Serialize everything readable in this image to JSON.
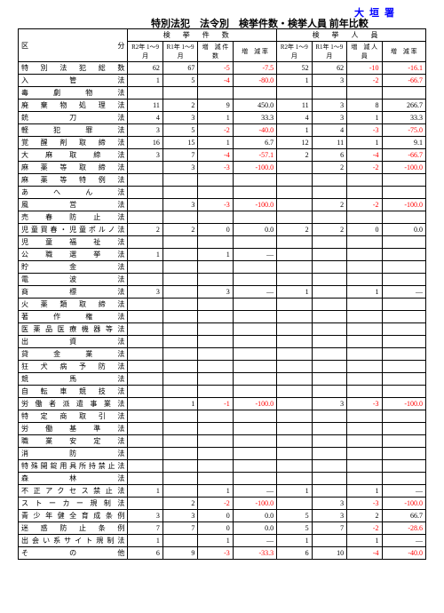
{
  "header": {
    "station": "大垣署",
    "title": "特別法犯　法令別　検挙件数・検挙人員 前年比較"
  },
  "columns": {
    "kubun": "区　分",
    "group1": "検挙件数",
    "group2": "検挙人員",
    "r2": "R2年\n1～9月",
    "r1": "R1年\n1～9月",
    "zg_k": "増　減\n件　数",
    "zg_r": "増　減\n率",
    "zg_j": "増　減\n人　員"
  },
  "rows": [
    {
      "l": "特別法犯総数",
      "v": [
        62,
        67,
        -5,
        -7.5,
        52,
        62,
        -10,
        -16.1
      ]
    },
    {
      "l": "入管法",
      "v": [
        1,
        5,
        -4,
        -80.0,
        1,
        3,
        -2,
        -66.7
      ]
    },
    {
      "l": "毒劇物法",
      "v": [
        null,
        null,
        null,
        null,
        null,
        null,
        null,
        null
      ]
    },
    {
      "l": "廃棄物処理法",
      "v": [
        11,
        2,
        9,
        450.0,
        11,
        3,
        8,
        266.7
      ]
    },
    {
      "l": "銃刀法",
      "v": [
        4,
        3,
        1,
        33.3,
        4,
        3,
        1,
        33.3
      ]
    },
    {
      "l": "軽犯罪法",
      "v": [
        3,
        5,
        -2,
        -40.0,
        1,
        4,
        -3,
        -75.0
      ]
    },
    {
      "l": "覚醒剤取締法",
      "v": [
        16,
        15,
        1,
        6.7,
        12,
        11,
        1,
        9.1
      ]
    },
    {
      "l": "大麻取締法",
      "v": [
        3,
        7,
        -4,
        -57.1,
        2,
        6,
        -4,
        -66.7
      ]
    },
    {
      "l": "麻薬等取締法",
      "v": [
        null,
        3,
        -3,
        -100.0,
        null,
        2,
        -2,
        -100.0
      ]
    },
    {
      "l": "麻薬等特例法",
      "v": [
        null,
        null,
        null,
        null,
        null,
        null,
        null,
        null
      ]
    },
    {
      "l": "あへん法",
      "v": [
        null,
        null,
        null,
        null,
        null,
        null,
        null,
        null
      ]
    },
    {
      "l": "風営法",
      "v": [
        null,
        3,
        -3,
        -100.0,
        null,
        2,
        -2,
        -100.0
      ]
    },
    {
      "l": "売春防止法",
      "v": [
        null,
        null,
        null,
        null,
        null,
        null,
        null,
        null
      ]
    },
    {
      "l": "児童買春・児童ポルノ法",
      "v": [
        2,
        2,
        0,
        0.0,
        2,
        2,
        0,
        0.0
      ]
    },
    {
      "l": "児童福祉法",
      "v": [
        null,
        null,
        null,
        null,
        null,
        null,
        null,
        null
      ]
    },
    {
      "l": "公職選挙法",
      "v": [
        1,
        null,
        1,
        "—",
        null,
        null,
        null,
        null
      ]
    },
    {
      "l": "貯金法",
      "v": [
        null,
        null,
        null,
        null,
        null,
        null,
        null,
        null
      ]
    },
    {
      "l": "電波法",
      "v": [
        null,
        null,
        null,
        null,
        null,
        null,
        null,
        null
      ]
    },
    {
      "l": "商標法",
      "v": [
        3,
        null,
        3,
        "—",
        1,
        null,
        1,
        "—"
      ]
    },
    {
      "l": "火薬類取締法",
      "v": [
        null,
        null,
        null,
        null,
        null,
        null,
        null,
        null
      ]
    },
    {
      "l": "著作権法",
      "v": [
        null,
        null,
        null,
        null,
        null,
        null,
        null,
        null
      ]
    },
    {
      "l": "医薬品医療機器等法",
      "v": [
        null,
        null,
        null,
        null,
        null,
        null,
        null,
        null
      ]
    },
    {
      "l": "出資法",
      "v": [
        null,
        null,
        null,
        null,
        null,
        null,
        null,
        null
      ]
    },
    {
      "l": "貸金業法",
      "v": [
        null,
        null,
        null,
        null,
        null,
        null,
        null,
        null
      ]
    },
    {
      "l": "狂犬病予防法",
      "v": [
        null,
        null,
        null,
        null,
        null,
        null,
        null,
        null
      ]
    },
    {
      "l": "競馬法",
      "v": [
        null,
        null,
        null,
        null,
        null,
        null,
        null,
        null
      ]
    },
    {
      "l": "自転車競技法",
      "v": [
        null,
        null,
        null,
        null,
        null,
        null,
        null,
        null
      ]
    },
    {
      "l": "労働者派遣事業法",
      "v": [
        null,
        1,
        -1,
        -100.0,
        null,
        3,
        -3,
        -100.0
      ]
    },
    {
      "l": "特定商取引法",
      "v": [
        null,
        null,
        null,
        null,
        null,
        null,
        null,
        null
      ]
    },
    {
      "l": "労働基準法",
      "v": [
        null,
        null,
        null,
        null,
        null,
        null,
        null,
        null
      ]
    },
    {
      "l": "職業安定法",
      "v": [
        null,
        null,
        null,
        null,
        null,
        null,
        null,
        null
      ]
    },
    {
      "l": "消防法",
      "v": [
        null,
        null,
        null,
        null,
        null,
        null,
        null,
        null
      ]
    },
    {
      "l": "特殊開錠用具所持禁止法",
      "v": [
        null,
        null,
        null,
        null,
        null,
        null,
        null,
        null
      ]
    },
    {
      "l": "森林法",
      "v": [
        null,
        null,
        null,
        null,
        null,
        null,
        null,
        null
      ]
    },
    {
      "l": "不正アクセス禁止法",
      "v": [
        1,
        null,
        1,
        "—",
        1,
        null,
        1,
        "—"
      ]
    },
    {
      "l": "ストーカー規制法",
      "v": [
        null,
        2,
        -2,
        -100.0,
        null,
        3,
        -3,
        -100.0
      ]
    },
    {
      "l": "青少年健全育成条例",
      "v": [
        3,
        3,
        0,
        0.0,
        5,
        3,
        2,
        66.7
      ]
    },
    {
      "l": "迷惑防止条例",
      "v": [
        7,
        7,
        0,
        0.0,
        5,
        7,
        -2,
        -28.6
      ]
    },
    {
      "l": "出会い系サイト規制法",
      "v": [
        1,
        null,
        1,
        "—",
        1,
        null,
        1,
        "—"
      ]
    },
    {
      "l": "その他",
      "v": [
        6,
        9,
        -3,
        -33.3,
        6,
        10,
        -4,
        -40.0
      ]
    }
  ]
}
